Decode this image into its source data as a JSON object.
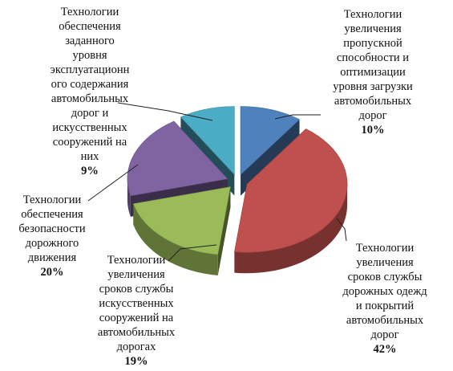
{
  "chart_data": {
    "type": "pie",
    "title": "",
    "style": "3d-exploded",
    "slices": [
      {
        "lines": [
          "Технологии",
          "увеличения",
          "пропускной",
          "способности и",
          "оптимизации",
          "уровня загрузки",
          "автомобильных",
          "дорог"
        ],
        "value": 10,
        "pct_label": "10%",
        "color": "#4F81BD"
      },
      {
        "lines": [
          "Технологии",
          "увеличения",
          "сроков службы",
          "дорожных одежд",
          "и покрытий",
          "автомобильных",
          "дорог"
        ],
        "value": 42,
        "pct_label": "42%",
        "color": "#C0504D"
      },
      {
        "lines": [
          "Технологии",
          "увеличения",
          "сроков службы",
          "искусственных",
          "сооружений на",
          "автомобильных",
          "дорогах"
        ],
        "value": 19,
        "pct_label": "19%",
        "color": "#9BBB59"
      },
      {
        "lines": [
          "Технологии",
          "обеспечения",
          "безопасности",
          "дорожного",
          "движения"
        ],
        "value": 20,
        "pct_label": "20%",
        "color": "#8064A2"
      },
      {
        "lines": [
          "Технологии",
          "обеспечения",
          "заданного",
          "уровня",
          "эксплуатационн",
          "ого содержания",
          "автомобильных",
          "дорог и",
          "искусственных",
          "сооружений на",
          "них"
        ],
        "value": 9,
        "pct_label": "9%",
        "color": "#4BACC6"
      }
    ]
  }
}
